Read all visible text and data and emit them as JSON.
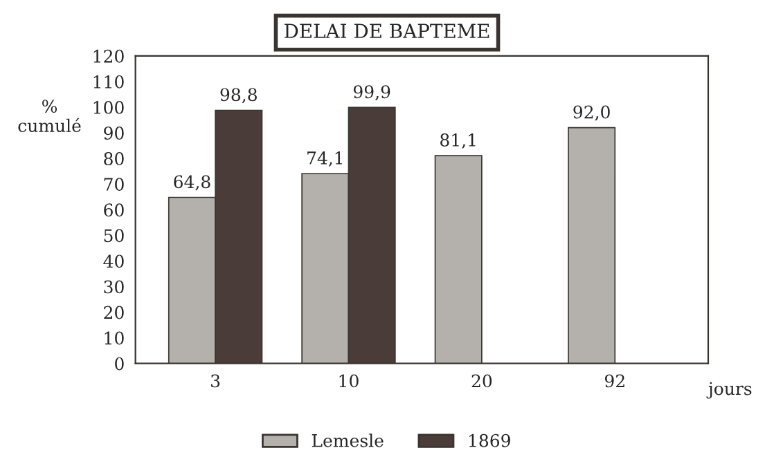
{
  "chart_data": {
    "type": "bar",
    "title": "DELAI DE BAPTEME",
    "xlabel": "jours",
    "ylabel": "%\ncumulé",
    "categories": [
      "3",
      "10",
      "20",
      "92"
    ],
    "series": [
      {
        "name": "Lemesle",
        "color": "#b4b0ac",
        "values": [
          64.8,
          74.1,
          81.1,
          92.0
        ],
        "value_labels": [
          "64,8",
          "74,1",
          "81,1",
          "92,0"
        ]
      },
      {
        "name": "1869",
        "color": "#4a3c38",
        "values": [
          98.8,
          99.9,
          null,
          null
        ],
        "value_labels": [
          "98,8",
          "99,9",
          null,
          null
        ]
      }
    ],
    "ylim": [
      0,
      120
    ],
    "yticks": [
      0,
      10,
      20,
      30,
      40,
      50,
      60,
      70,
      80,
      90,
      100,
      110,
      120
    ],
    "grid": false,
    "legend": "bottom"
  }
}
